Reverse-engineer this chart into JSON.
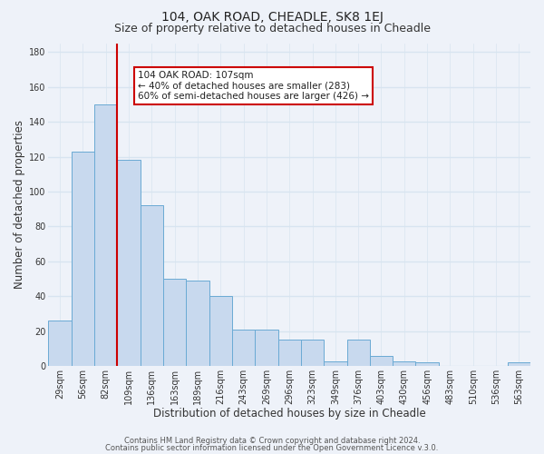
{
  "title": "104, OAK ROAD, CHEADLE, SK8 1EJ",
  "subtitle": "Size of property relative to detached houses in Cheadle",
  "xlabel": "Distribution of detached houses by size in Cheadle",
  "ylabel": "Number of detached properties",
  "categories": [
    "29sqm",
    "56sqm",
    "82sqm",
    "109sqm",
    "136sqm",
    "163sqm",
    "189sqm",
    "216sqm",
    "243sqm",
    "269sqm",
    "296sqm",
    "323sqm",
    "349sqm",
    "376sqm",
    "403sqm",
    "430sqm",
    "456sqm",
    "483sqm",
    "510sqm",
    "536sqm",
    "563sqm"
  ],
  "bar_heights": [
    26,
    123,
    150,
    118,
    92,
    50,
    49,
    40,
    21,
    21,
    15,
    15,
    3,
    15,
    6,
    3,
    2,
    0,
    0,
    0,
    2
  ],
  "bar_color": "#c8d9ee",
  "bar_edge_color": "#6aaad4",
  "vline_x_idx": 2.5,
  "vline_color": "#cc0000",
  "ylim": [
    0,
    185
  ],
  "yticks": [
    0,
    20,
    40,
    60,
    80,
    100,
    120,
    140,
    160,
    180
  ],
  "annotation_text": "104 OAK ROAD: 107sqm\n← 40% of detached houses are smaller (283)\n60% of semi-detached houses are larger (426) →",
  "annotation_box_color": "#ffffff",
  "annotation_box_edge": "#cc0000",
  "footer1": "Contains HM Land Registry data © Crown copyright and database right 2024.",
  "footer2": "Contains public sector information licensed under the Open Government Licence v.3.0.",
  "bg_color": "#eef2f9",
  "grid_color": "#d8e4f0",
  "title_fontsize": 10,
  "subtitle_fontsize": 9,
  "axis_label_fontsize": 8.5,
  "tick_fontsize": 7,
  "annot_fontsize": 7.5,
  "footer_fontsize": 6
}
